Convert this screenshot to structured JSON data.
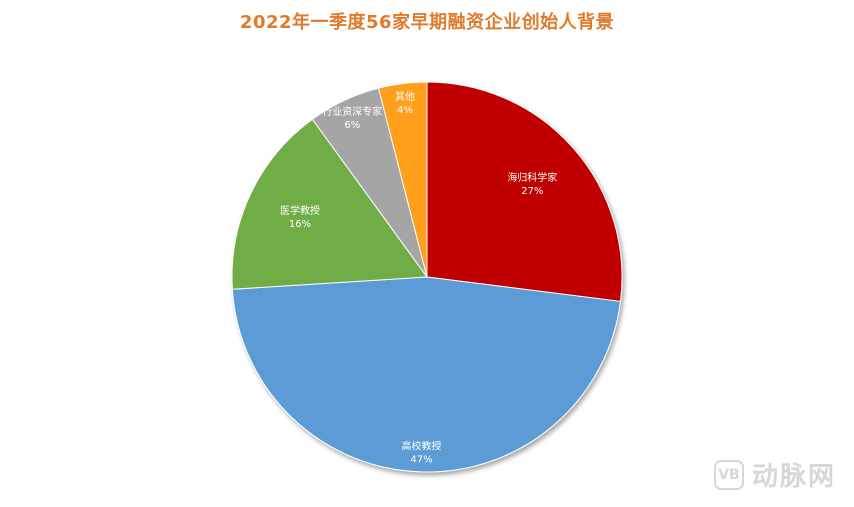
{
  "colors": {
    "title": "#e07b2e",
    "label_light": "#ffffff",
    "label_dark": "#ffffff"
  },
  "chart_data": {
    "type": "pie",
    "title": "2022年一季度56家早期融资企业创始人背景",
    "slices": [
      {
        "label": "海归科学家",
        "value": 27,
        "display": "27%",
        "color": "#c00000"
      },
      {
        "label": "高校教授",
        "value": 47,
        "display": "47%",
        "color": "#5b9bd5"
      },
      {
        "label": "医学教授",
        "value": 16,
        "display": "16%",
        "color": "#70ad47"
      },
      {
        "label": "行业资深专家",
        "value": 6,
        "display": "6%",
        "color": "#a5a5a5"
      },
      {
        "label": "其他",
        "value": 4,
        "display": "4%",
        "color": "#ff9f1c"
      }
    ],
    "start_angle_deg": 0,
    "direction": "clockwise",
    "legend": "none"
  },
  "watermark": {
    "logo_text": "VB",
    "text": "动脉网"
  }
}
